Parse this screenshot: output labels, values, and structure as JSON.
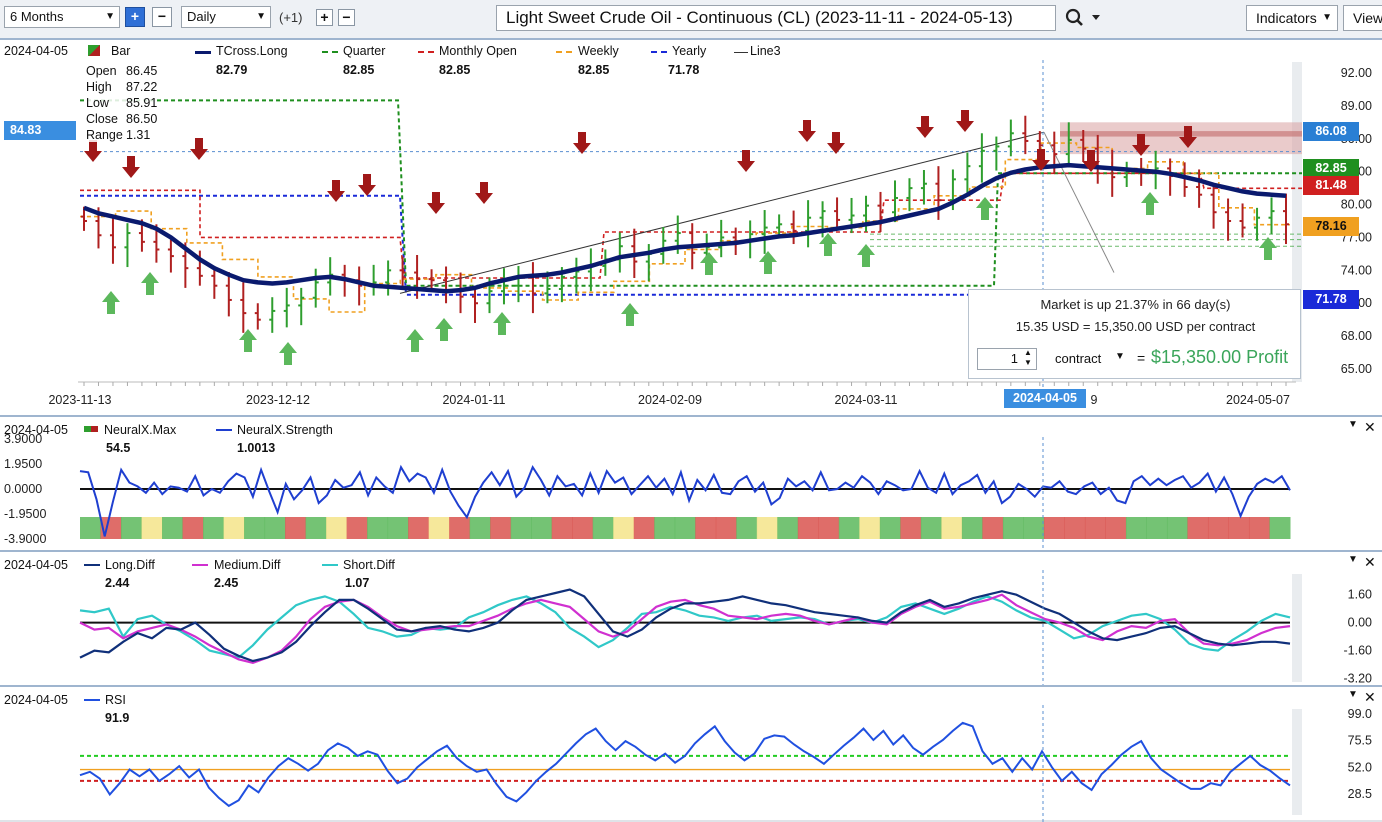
{
  "toolbar": {
    "period_value": "6 Months",
    "interval_value": "Daily",
    "interval_offset": "(+1)",
    "plus_label": "+",
    "minus_label": "−",
    "chart_title": "Light Sweet Crude Oil - Continuous (CL) (2023-11-11 - 2024-05-13)",
    "indicators_label": "Indicators",
    "view_label": "View"
  },
  "colors": {
    "up_bar": "#2e9e2e",
    "down_bar": "#b02020",
    "tcross_long": "#0a1a6e",
    "quarter": "#1f8f1f",
    "monthly_open": "#d02020",
    "weekly": "#f0a020",
    "yearly": "#1a2ad8",
    "line3": "#333333",
    "neural_strength": "#1f3fd0",
    "long_diff": "#10307a",
    "medium_diff": "#d030d0",
    "short_diff": "#30c8c8",
    "rsi": "#2050e0"
  },
  "main_panel": {
    "date": "2024-04-05",
    "legend": [
      {
        "name": "Bar",
        "value": "",
        "color": "#b02020",
        "icon": "bar-icon"
      },
      {
        "name": "TCross.Long",
        "value": "82.79",
        "color": "#0a1a6e",
        "icon": "line-solid-icon"
      },
      {
        "name": "Quarter",
        "value": "82.85",
        "color": "#1f8f1f",
        "icon": "line-dashed-icon"
      },
      {
        "name": "Monthly Open",
        "value": "82.85",
        "color": "#d02020",
        "icon": "line-dashed-icon"
      },
      {
        "name": "Weekly",
        "value": "82.85",
        "color": "#f0a020",
        "icon": "line-dashed-icon"
      },
      {
        "name": "Yearly",
        "value": "71.78",
        "color": "#1a2ad8",
        "icon": "line-dashed-icon"
      },
      {
        "name": "Line3",
        "value": "",
        "color": "#333333",
        "icon": "line-solid-icon"
      }
    ],
    "ohlc": [
      {
        "label": "Open",
        "value": "86.45"
      },
      {
        "label": "High",
        "value": "87.22"
      },
      {
        "label": "Low",
        "value": "85.91"
      },
      {
        "label": "Close",
        "value": "86.50"
      },
      {
        "label": "Range",
        "value": "1.31"
      }
    ],
    "crosshair_price": "84.83",
    "crosshair_date": "2024-04-05",
    "price_tags": [
      {
        "value": "86.08",
        "bg": "#2a7fd4",
        "fg": "#ffffff"
      },
      {
        "value": "82.85",
        "bg": "#1f8f1f",
        "fg": "#ffffff"
      },
      {
        "value": "81.48",
        "bg": "#d02020",
        "fg": "#ffffff"
      },
      {
        "value": "78.16",
        "bg": "#f0a020",
        "fg": "#111111"
      },
      {
        "value": "71.78",
        "bg": "#1a2ad8",
        "fg": "#ffffff"
      }
    ],
    "tooltip": {
      "line1": "Market is up 21.37% in 66 day(s)",
      "line2": "15.35 USD = 15,350.00 USD per contract",
      "qty": "1",
      "unit_label": "contract",
      "equals": "=",
      "profit": "$15,350.00 Profit"
    }
  },
  "chart_data": [
    {
      "type": "line",
      "title": "Light Sweet Crude Oil - Continuous (CL) (2023-11-11 - 2024-05-13)",
      "x_ticks": [
        "2023-11-13",
        "2023-12-12",
        "2024-01-11",
        "2024-02-09",
        "2024-03-11",
        "2024-04-05",
        "2024-05-07"
      ],
      "y_ticks": [
        65,
        68,
        71,
        74,
        77,
        80,
        83,
        86,
        89,
        92
      ],
      "y_tick_labels": [
        "65.00",
        "68.00",
        "71.00",
        "74.00",
        "77.00",
        "80.00",
        "83.00",
        "86.00",
        "89.00",
        "92.00"
      ],
      "ylim": [
        64,
        93
      ],
      "close": [
        78.5,
        77.2,
        76.1,
        77.4,
        76.6,
        75.9,
        75.3,
        74.2,
        73.5,
        72.6,
        71.3,
        70.1,
        69.5,
        70.3,
        70.8,
        71.5,
        72.9,
        73.6,
        73.1,
        72.6,
        72.9,
        74.0,
        73.8,
        73.2,
        73.1,
        72.2,
        71.6,
        71.0,
        72.1,
        72.6,
        73.5,
        71.9,
        72.3,
        73.4,
        73.9,
        74.4,
        75.0,
        76.2,
        74.8,
        75.5,
        76.7,
        77.4,
        75.6,
        76.1,
        77.0,
        76.6,
        77.3,
        77.9,
        78.2,
        77.6,
        78.8,
        79.4,
        78.6,
        79.0,
        79.9,
        79.3,
        80.6,
        81.5,
        81.9,
        80.4,
        82.3,
        83.5,
        84.9,
        85.3,
        86.5,
        85.8,
        85.4,
        84.6,
        85.9,
        85.1,
        83.4,
        82.5,
        83.0,
        82.9,
        83.3,
        82.6,
        81.6,
        80.9,
        79.3,
        78.5,
        77.9,
        78.8,
        79.4,
        78.2
      ],
      "series": [
        {
          "name": "TCross.Long",
          "values": [
            79.7,
            79.2,
            78.9,
            78.6,
            78.3,
            77.8,
            77.0,
            76.0,
            75.0,
            74.2,
            73.6,
            73.1,
            72.9,
            72.8,
            72.9,
            73.1,
            73.3,
            73.4,
            73.2,
            72.9,
            72.6,
            72.5,
            72.4,
            72.3,
            72.2,
            72.1,
            72.2,
            72.4,
            72.8,
            73.1,
            73.4,
            73.5,
            73.6,
            73.8,
            74.1,
            74.4,
            74.8,
            75.2,
            75.4,
            75.6,
            75.9,
            76.1,
            76.2,
            76.3,
            76.4,
            76.5,
            76.7,
            76.9,
            77.1,
            77.2,
            77.4,
            77.6,
            77.8,
            78.0,
            78.2,
            78.4,
            78.7,
            79.0,
            79.3,
            79.6,
            80.2,
            80.9,
            81.7,
            82.4,
            82.9,
            83.2,
            83.4,
            83.5,
            83.6,
            83.5,
            83.4,
            83.3,
            83.2,
            83.1,
            83.0,
            82.8,
            82.5,
            82.2,
            81.8,
            81.5,
            81.2,
            81.0,
            80.9,
            80.8
          ]
        },
        {
          "name": "Quarter",
          "values": [
            82.85
          ]
        },
        {
          "name": "Monthly Open",
          "values": [
            82.85
          ]
        },
        {
          "name": "Weekly",
          "values": [
            82.85
          ]
        },
        {
          "name": "Yearly",
          "values": [
            71.78
          ]
        }
      ]
    },
    {
      "type": "line",
      "date": "2024-04-05",
      "legend": [
        {
          "name": "NeuralX.Max",
          "value": "54.5"
        },
        {
          "name": "NeuralX.Strength",
          "value": "1.0013"
        }
      ],
      "y_ticks": [
        3.9,
        1.95,
        0,
        -1.95,
        -3.9
      ],
      "y_tick_labels": [
        "3.9000",
        "1.9500",
        "0.0000",
        "-1.9500",
        "-3.9000"
      ],
      "ylim": [
        -3.9,
        3.9
      ],
      "series": [
        {
          "name": "NeuralX.Strength",
          "values": [
            1.4,
            1.3,
            -0.8,
            -3.7,
            -1.0,
            1.5,
            0.5,
            0.2,
            -0.3,
            0.5,
            -0.4,
            0.2,
            0.1,
            -0.2,
            1.0,
            -0.5,
            0.0,
            -0.3,
            0.6,
            1.2,
            0.9,
            -0.6,
            1.5,
            -0.2,
            -1.8,
            0.4,
            -0.8,
            -0.1,
            0.9,
            -1.1,
            -0.5,
            0.7,
            0.1,
            0.3,
            1.3,
            -0.5,
            0.9,
            0.2,
            -0.3,
            1.7,
            0.6,
            1.2,
            0.9,
            -0.3,
            1.5,
            -0.2,
            -1.3,
            -2.2,
            -0.6,
            0.5,
            1.3,
            0.3,
            1.4,
            -0.6,
            0.1,
            1.7,
            0.7,
            -0.5,
            1.0,
            0.2,
            0.4,
            -0.5,
            1.2,
            -0.3,
            1.4,
            0.5,
            0.9,
            -0.4,
            0.3,
            1.0,
            0.1,
            0.8,
            -0.4,
            1.3,
            -0.9,
            0.7,
            -0.1,
            1.1,
            -0.3,
            -0.4,
            0.6,
            1.0,
            -0.2,
            0.5,
            -1.2,
            -0.7,
            0.8,
            0.2,
            0.6,
            -0.1,
            1.3,
            -0.1,
            0.0,
            0.5,
            0.1,
            1.0,
            0.5,
            -0.4,
            0.6,
            0.3,
            -0.1,
            0.0,
            1.4,
            0.1,
            -0.3,
            1.2,
            -0.4,
            0.3,
            0.6,
            1.1,
            -0.3,
            0.6,
            -1.1,
            -0.6,
            0.4,
            0.0,
            -0.6,
            0.2,
            0.1,
            0.6,
            -0.2,
            -0.4,
            0.2,
            0.5,
            -0.4,
            0.1,
            -0.9,
            -1.1,
            0.6,
            1.0,
            0.3,
            0.8,
            0.3,
            0.7,
            1.0,
            0.1,
            0.5,
            1.2,
            -0.2,
            0.9,
            -0.4,
            -2.1,
            -0.6,
            0.4,
            0.8,
            0.5,
            1.0,
            -0.1
          ]
        },
        {
          "name": "NeuralX.Max",
          "values": [
            1,
            0,
            1,
            2,
            1,
            0,
            1,
            2,
            1,
            1,
            0,
            1,
            2,
            0,
            1,
            1,
            0,
            2,
            0,
            1,
            0,
            1,
            1,
            0,
            0,
            1,
            2,
            0,
            1,
            1,
            0,
            0,
            1,
            2,
            1,
            0,
            0,
            1,
            2,
            1,
            0,
            1,
            2,
            1,
            0,
            1,
            1,
            0,
            0,
            0,
            0,
            1,
            1,
            1,
            0,
            0,
            0,
            0,
            1
          ]
        }
      ]
    },
    {
      "type": "line",
      "date": "2024-04-05",
      "legend": [
        {
          "name": "Long.Diff",
          "value": "2.44"
        },
        {
          "name": "Medium.Diff",
          "value": "2.45"
        },
        {
          "name": "Short.Diff",
          "value": "1.07"
        }
      ],
      "y_ticks": [
        1.6,
        0,
        -1.6,
        -3.2
      ],
      "y_tick_labels": [
        "1.60",
        "0.00",
        "-1.60",
        "-3.20"
      ],
      "ylim": [
        -3.4,
        2.9
      ],
      "series": [
        {
          "name": "Long.Diff",
          "values": [
            -2.0,
            -1.6,
            -1.7,
            -1.1,
            -0.6,
            -0.9,
            -0.3,
            -0.4,
            0.0,
            -0.7,
            -1.5,
            -1.9,
            -2.2,
            -2.0,
            -1.7,
            -1.1,
            -0.2,
            0.6,
            1.3,
            1.3,
            0.8,
            0.2,
            -0.4,
            -0.5,
            -0.3,
            -0.2,
            -0.4,
            -0.5,
            -0.3,
            0.0,
            0.7,
            1.3,
            1.5,
            1.7,
            1.9,
            1.5,
            0.5,
            -0.5,
            -0.8,
            -0.4,
            0.3,
            0.8,
            1.1,
            1.1,
            1.2,
            1.3,
            1.5,
            1.3,
            1.1,
            1.0,
            0.8,
            0.6,
            0.5,
            0.4,
            0.3,
            0.1,
            0.0,
            0.6,
            1.0,
            1.3,
            0.9,
            1.1,
            1.4,
            1.6,
            1.8,
            1.6,
            1.2,
            0.8,
            0.5,
            0.0,
            -0.5,
            -0.9,
            -1.0,
            -0.8,
            -0.6,
            -0.3,
            -0.2,
            -0.6,
            -1.0,
            -1.2,
            -1.3,
            -1.2,
            -1.1,
            -1.1,
            -1.2
          ]
        },
        {
          "name": "Medium.Diff",
          "values": [
            0.0,
            -0.4,
            -0.3,
            -0.9,
            -0.5,
            -0.3,
            -0.1,
            -0.4,
            -0.8,
            -1.3,
            -1.7,
            -2.1,
            -2.3,
            -2.0,
            -1.6,
            -0.8,
            0.2,
            0.9,
            1.2,
            1.3,
            0.9,
            0.3,
            -0.2,
            -0.5,
            -0.4,
            -0.3,
            -0.2,
            -0.2,
            0.1,
            0.4,
            0.8,
            1.1,
            1.3,
            1.1,
            0.9,
            0.2,
            -0.5,
            -0.8,
            -0.5,
            0.2,
            0.9,
            1.2,
            1.3,
            1.0,
            0.8,
            0.4,
            0.3,
            0.2,
            0.4,
            0.5,
            0.4,
            0.1,
            -0.1,
            0.1,
            0.3,
            0.0,
            -0.1,
            0.5,
            0.9,
            1.2,
            0.8,
            0.9,
            1.1,
            1.3,
            1.6,
            1.0,
            0.6,
            0.2,
            0.0,
            -0.3,
            -0.8,
            -1.0,
            -0.5,
            -0.2,
            -0.3,
            0.1,
            0.2,
            -0.6,
            -1.2,
            -1.3,
            -1.2,
            -1.0,
            -0.6,
            -0.3,
            -0.2
          ]
        },
        {
          "name": "Short.Diff",
          "values": [
            0.7,
            0.6,
            0.8,
            -0.8,
            0.2,
            0.4,
            -0.1,
            -0.5,
            -1.0,
            -1.6,
            -1.8,
            -2.0,
            -1.3,
            -0.4,
            0.3,
            1.0,
            1.3,
            1.5,
            1.2,
            0.5,
            -0.3,
            -0.5,
            -0.8,
            -0.7,
            -0.3,
            -0.4,
            -0.3,
            0.3,
            0.6,
            1.0,
            1.3,
            1.5,
            1.1,
            0.6,
            -0.3,
            -0.8,
            -1.4,
            -1.0,
            -0.3,
            0.5,
            0.6,
            0.9,
            0.7,
            0.4,
            0.3,
            0.1,
            0.3,
            0.4,
            0.1,
            0.2,
            0.3,
            0.2,
            -0.1,
            0.1,
            0.2,
            0.0,
            0.3,
            0.9,
            1.1,
            0.8,
            0.5,
            0.8,
            1.2,
            1.5,
            1.2,
            0.7,
            0.3,
            0.1,
            -0.4,
            -0.9,
            -0.7,
            -0.2,
            0.1,
            0.4,
            0.5,
            0.2,
            -0.4,
            -1.2,
            -1.5,
            -1.6,
            -1.0,
            -0.5,
            0.1,
            0.5,
            0.3
          ]
        }
      ]
    },
    {
      "type": "line",
      "date": "2024-04-05",
      "legend": [
        {
          "name": "RSI",
          "value": "91.9"
        }
      ],
      "y_ticks": [
        99.0,
        75.5,
        52.0,
        28.5
      ],
      "y_tick_labels": [
        "99.0",
        "75.5",
        "52.0",
        "28.5"
      ],
      "ylim": [
        10,
        105
      ],
      "series": [
        {
          "name": "RSI",
          "values": [
            45,
            48,
            42,
            28,
            38,
            50,
            44,
            50,
            40,
            46,
            53,
            43,
            50,
            34,
            25,
            18,
            23,
            36,
            30,
            43,
            53,
            60,
            55,
            49,
            55,
            67,
            73,
            69,
            62,
            66,
            63,
            49,
            38,
            42,
            52,
            59,
            66,
            71,
            60,
            53,
            48,
            50,
            37,
            26,
            22,
            30,
            40,
            48,
            55,
            64,
            73,
            81,
            86,
            75,
            67,
            75,
            70,
            63,
            58,
            64,
            56,
            62,
            73,
            81,
            88,
            75,
            65,
            58,
            64,
            77,
            80,
            79,
            72,
            66,
            61,
            55,
            63,
            71,
            78,
            86,
            76,
            84,
            72,
            80,
            69,
            63,
            70,
            76,
            84,
            91,
            88,
            66,
            55,
            60,
            48,
            60,
            50,
            66,
            52,
            40,
            48,
            38,
            32,
            46,
            54,
            63,
            70,
            75,
            60,
            50,
            44,
            38,
            33,
            33,
            38,
            36,
            48,
            55,
            62,
            54,
            49,
            42,
            36
          ]
        }
      ]
    }
  ],
  "neural_panel": {
    "date": "2024-04-05",
    "max_label": "NeuralX.Max",
    "max_value": "54.5",
    "strength_label": "NeuralX.Strength",
    "strength_value": "1.0013"
  },
  "diff_panel": {
    "date": "2024-04-05",
    "long_label": "Long.Diff",
    "long_value": "2.44",
    "medium_label": "Medium.Diff",
    "medium_value": "2.45",
    "short_label": "Short.Diff",
    "short_value": "1.07"
  },
  "rsi_panel": {
    "date": "2024-04-05",
    "rsi_label": "RSI",
    "rsi_value": "91.9"
  }
}
